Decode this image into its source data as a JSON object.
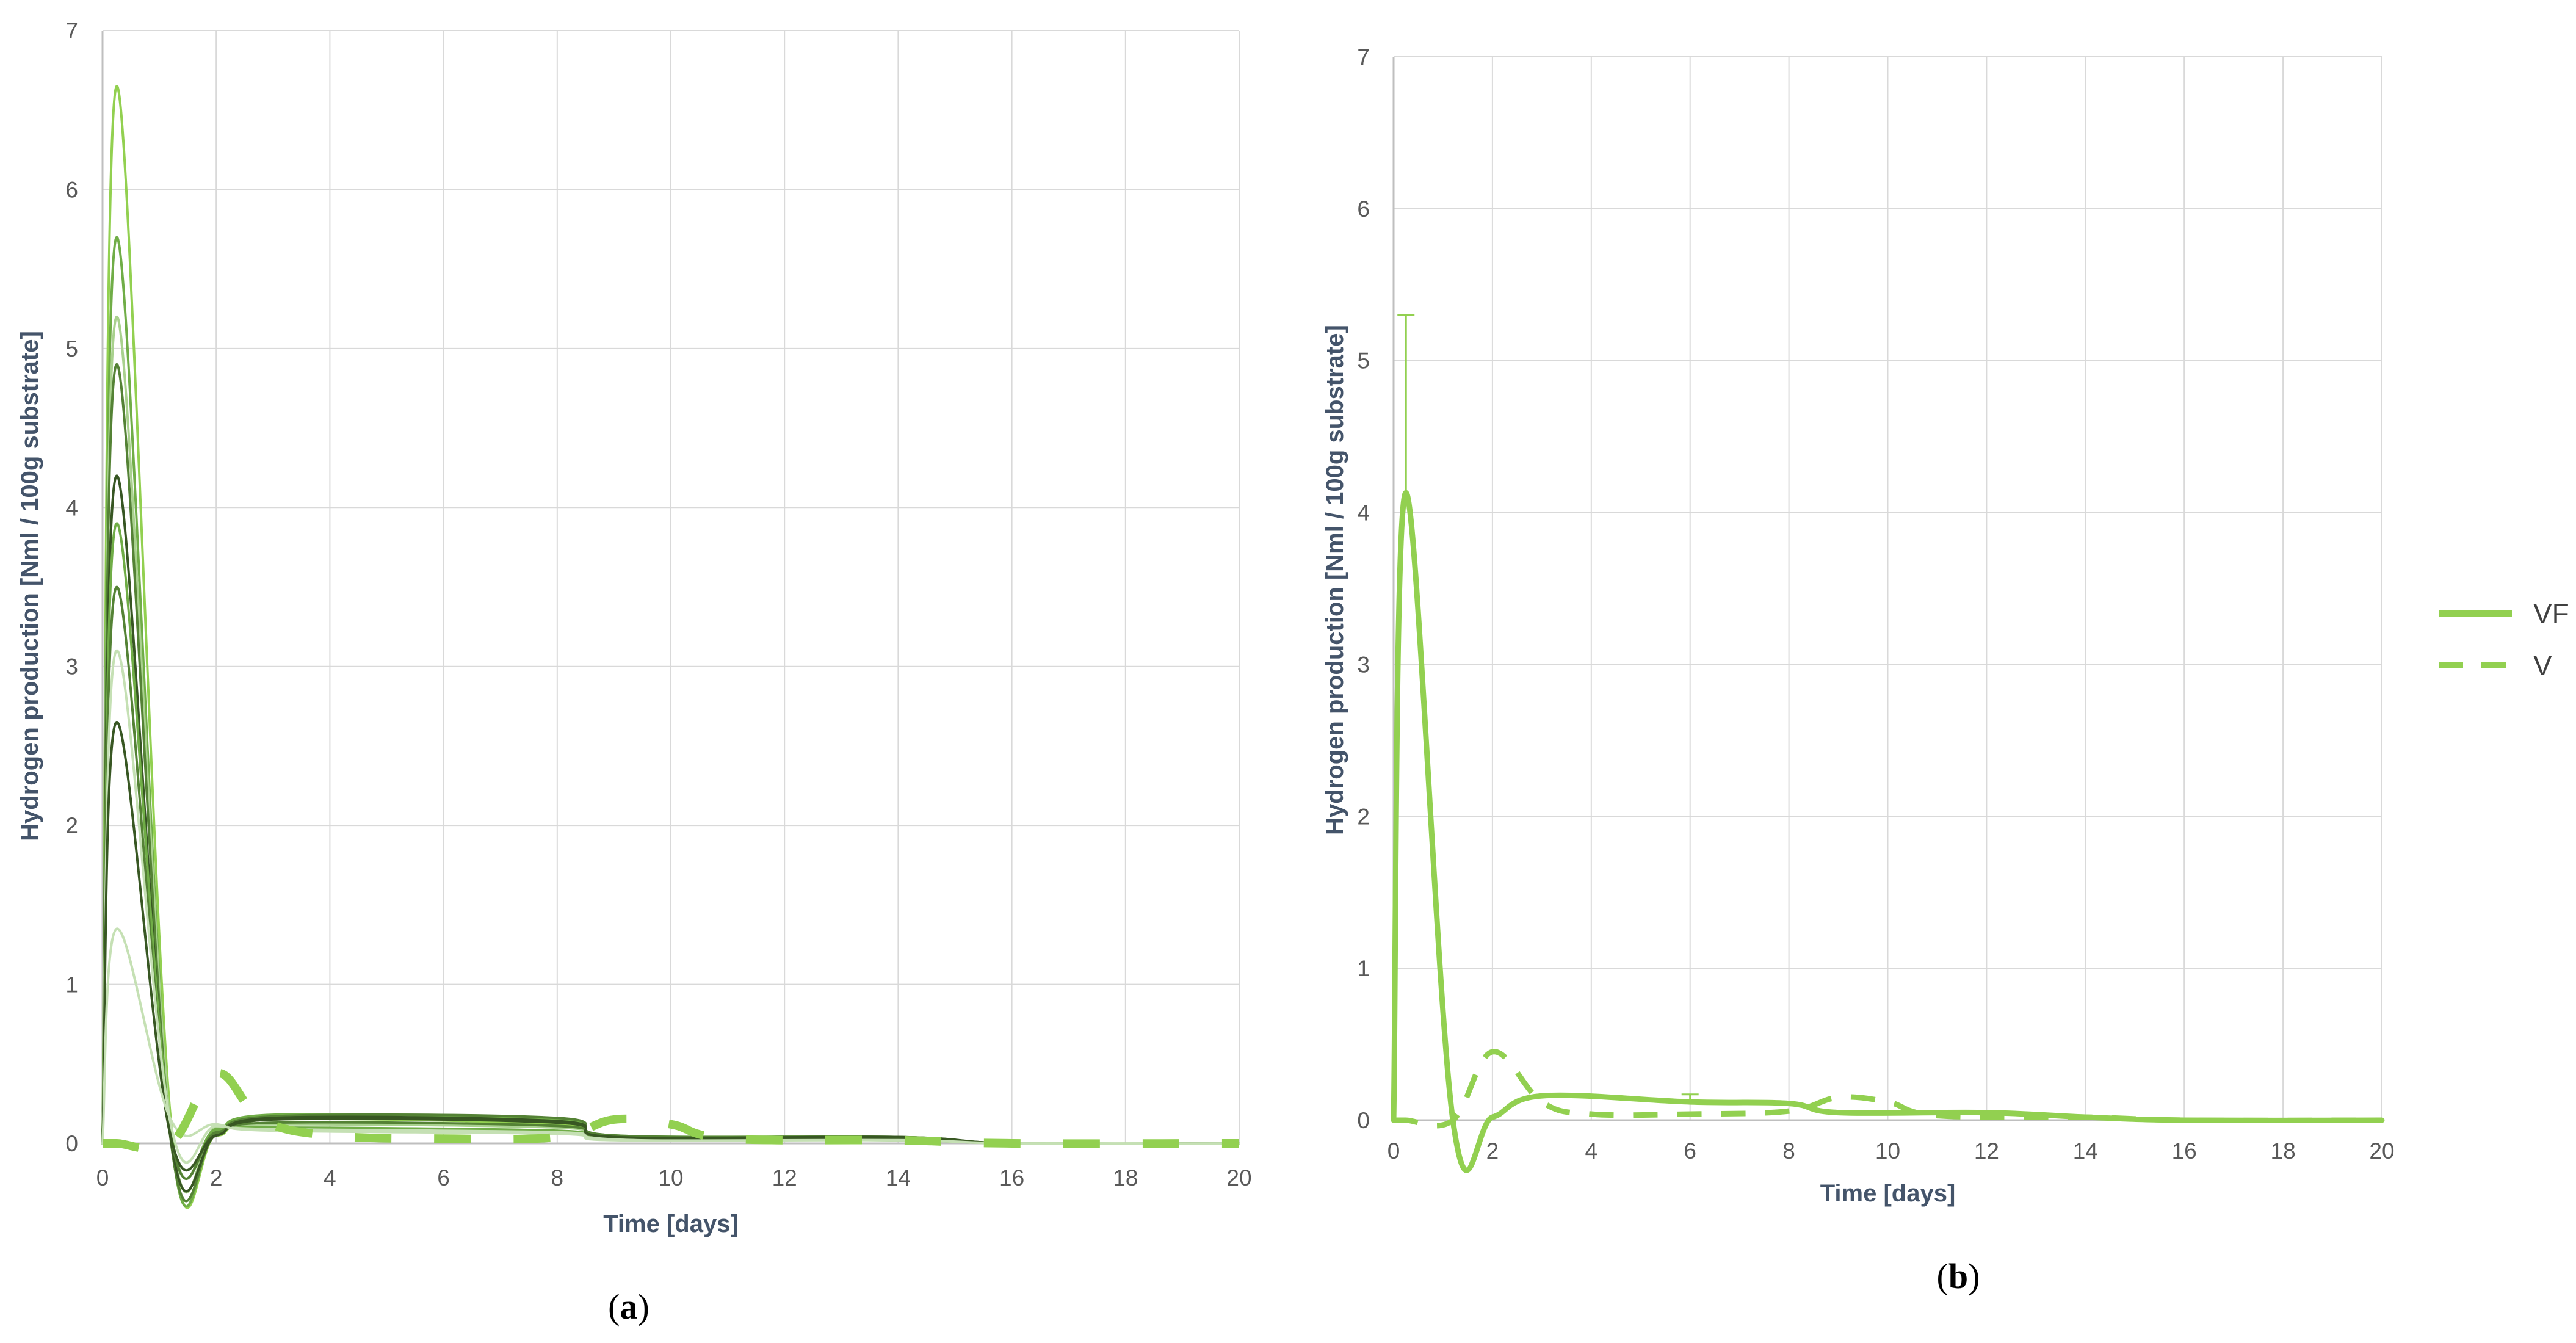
{
  "colors": {
    "primary_green": "#92d050",
    "dark_green": "#548235",
    "mid_green": "#70ad47",
    "light_green": "#a9d18e",
    "pale_green": "#c5e0b4",
    "grid": "#d9d9d9",
    "axis_text": "#595959",
    "axis_title": "#44546a"
  },
  "chart_data": [
    {
      "type": "line",
      "panel_label": "a",
      "xlabel": "Time [days]",
      "ylabel": "Hydrogen production [Nml / 100g substrate]",
      "xlim": [
        0,
        20
      ],
      "ylim": [
        0,
        7
      ],
      "xticks": [
        0,
        2,
        4,
        6,
        8,
        10,
        12,
        14,
        16,
        18,
        20
      ],
      "yticks": [
        0,
        1,
        2,
        3,
        4,
        5,
        6,
        7
      ],
      "grid": true,
      "legend": "none",
      "series": [
        {
          "color": "#92d050",
          "style": "solid",
          "x": [
            0,
            0.25,
            1.2,
            2,
            3,
            8,
            9,
            14,
            16,
            20
          ],
          "y": [
            0,
            6.65,
            0.15,
            0.05,
            0.15,
            0.12,
            0.04,
            0.03,
            0,
            0
          ]
        },
        {
          "color": "#70ad47",
          "style": "solid",
          "x": [
            0,
            0.25,
            1.2,
            2,
            3,
            8,
            9,
            14,
            16,
            20
          ],
          "y": [
            0,
            5.7,
            0.05,
            0.08,
            0.18,
            0.15,
            0.05,
            0.04,
            0,
            0
          ]
        },
        {
          "color": "#a9d18e",
          "style": "solid",
          "x": [
            0,
            0.25,
            1.2,
            2,
            3,
            8,
            9,
            14,
            16,
            20
          ],
          "y": [
            0,
            5.2,
            0.1,
            0.1,
            0.12,
            0.1,
            0.04,
            0.03,
            0,
            0
          ]
        },
        {
          "color": "#548235",
          "style": "solid",
          "x": [
            0,
            0.25,
            1.2,
            2,
            3,
            8,
            9,
            14,
            16,
            20
          ],
          "y": [
            0,
            4.9,
            0.02,
            0.06,
            0.17,
            0.16,
            0.05,
            0.04,
            0,
            0
          ]
        },
        {
          "color": "#375623",
          "style": "solid",
          "x": [
            0,
            0.25,
            1.2,
            2,
            3,
            8,
            9,
            14,
            16,
            20
          ],
          "y": [
            0,
            4.2,
            0.03,
            0.05,
            0.16,
            0.14,
            0.04,
            0.04,
            0,
            0
          ]
        },
        {
          "color": "#70ad47",
          "style": "solid",
          "x": [
            0,
            0.25,
            1.2,
            2,
            3,
            8,
            9,
            14,
            16,
            20
          ],
          "y": [
            0,
            3.9,
            0.08,
            0.09,
            0.1,
            0.08,
            0.03,
            0.02,
            0,
            0
          ]
        },
        {
          "color": "#548235",
          "style": "solid",
          "x": [
            0,
            0.25,
            1.2,
            2,
            3,
            8,
            9,
            14,
            16,
            20
          ],
          "y": [
            0,
            3.5,
            0.05,
            0.07,
            0.13,
            0.11,
            0.04,
            0.03,
            0,
            0
          ]
        },
        {
          "color": "#c5e0b4",
          "style": "solid",
          "x": [
            0,
            0.25,
            1.2,
            2,
            3,
            8,
            9,
            14,
            16,
            20
          ],
          "y": [
            0,
            3.1,
            0.12,
            0.11,
            0.09,
            0.07,
            0.03,
            0.02,
            0,
            0
          ]
        },
        {
          "color": "#385723",
          "style": "solid",
          "x": [
            0,
            0.25,
            1.2,
            2,
            3,
            8,
            9,
            14,
            16,
            20
          ],
          "y": [
            0,
            2.65,
            0.04,
            0.05,
            0.15,
            0.13,
            0.04,
            0.03,
            0,
            0
          ]
        },
        {
          "color": "#c5e0b4",
          "style": "solid",
          "x": [
            0,
            0.25,
            1.2,
            2,
            3,
            8,
            9,
            14,
            16,
            20
          ],
          "y": [
            0,
            1.35,
            0.15,
            0.12,
            0.08,
            0.06,
            0.02,
            0.02,
            0,
            0
          ]
        },
        {
          "color": "#92d050",
          "style": "dashed",
          "x": [
            0,
            0.25,
            1.2,
            2,
            2.8,
            4,
            6,
            8,
            9,
            10,
            11,
            14,
            16,
            20
          ],
          "y": [
            0,
            0,
            0,
            0.44,
            0.15,
            0.05,
            0.03,
            0.04,
            0.15,
            0.12,
            0.03,
            0.02,
            0,
            0
          ]
        }
      ]
    },
    {
      "type": "line",
      "panel_label": "b",
      "xlabel": "Time [days]",
      "ylabel": "Hydrogen production [Nml / 100g substrate]",
      "xlim": [
        0,
        20
      ],
      "ylim": [
        0,
        7
      ],
      "xticks": [
        0,
        2,
        4,
        6,
        8,
        10,
        12,
        14,
        16,
        18,
        20
      ],
      "yticks": [
        0,
        1,
        2,
        3,
        4,
        5,
        6,
        7
      ],
      "grid": true,
      "legend": "right",
      "series": [
        {
          "name": "VF",
          "color": "#92d050",
          "style": "solid",
          "x": [
            0,
            0.25,
            1.2,
            2,
            3,
            6,
            8,
            9,
            12,
            14,
            16,
            20
          ],
          "y": [
            0,
            4.13,
            0,
            0.02,
            0.16,
            0.12,
            0.11,
            0.05,
            0.05,
            0.02,
            0,
            0
          ],
          "error_high": [
            null,
            5.3,
            null,
            null,
            null,
            0.17,
            null,
            null,
            null,
            null,
            null,
            null
          ]
        },
        {
          "name": "V",
          "color": "#92d050",
          "style": "dashed",
          "x": [
            0,
            0.25,
            1.2,
            2,
            3,
            4,
            6,
            8,
            9,
            10,
            11,
            14,
            16,
            20
          ],
          "y": [
            0,
            0,
            0,
            0.45,
            0.12,
            0.04,
            0.04,
            0.06,
            0.15,
            0.12,
            0.03,
            0.02,
            0,
            0
          ]
        }
      ]
    }
  ]
}
